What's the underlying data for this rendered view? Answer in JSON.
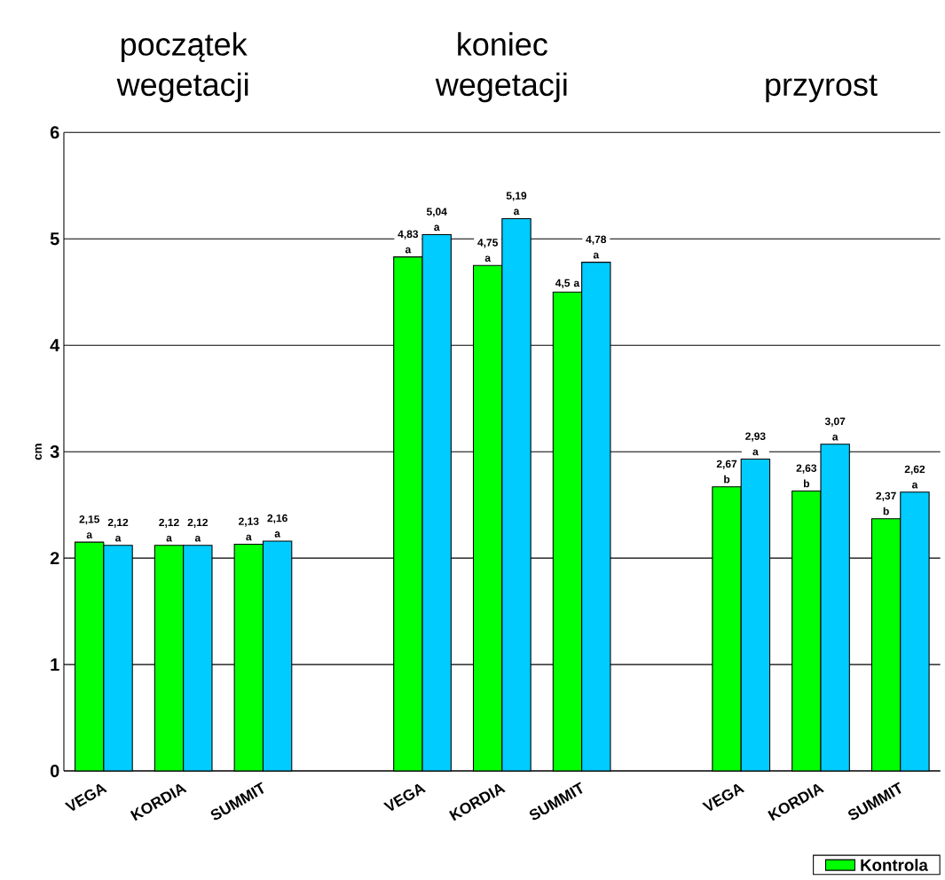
{
  "chart_data": {
    "type": "bar",
    "ylabel": "cm",
    "categories": [
      "VEGA",
      "KORDIA",
      "SUMMIT",
      null,
      "VEGA",
      "KORDIA",
      "SUMMIT",
      null,
      "VEGA",
      "KORDIA",
      "SUMMIT"
    ],
    "series": [
      {
        "name": "Kontrola",
        "color": "#00ff00",
        "values": [
          2.15,
          2.12,
          2.13,
          null,
          4.83,
          4.75,
          4.5,
          null,
          2.67,
          2.63,
          2.37
        ],
        "value_labels": [
          "2,15 a",
          "2,12 a",
          "2,13 a",
          null,
          "4,83 a",
          "4,75 a",
          "4,5 a",
          null,
          "2,67 b",
          "2,63 b",
          "2,37 b"
        ]
      },
      {
        "color": "#00ccff",
        "values": [
          2.12,
          2.12,
          2.16,
          null,
          5.04,
          5.19,
          4.78,
          null,
          2.93,
          3.07,
          2.62
        ],
        "value_labels": [
          "2,12 a",
          "2,12 a",
          "2,16 a",
          null,
          "5,04 a",
          "5,19 a",
          "4,78 a",
          null,
          "2,93 a",
          "3,07 a",
          "2,62 a"
        ]
      }
    ],
    "annotations": [
      "początek wegetacji",
      "koniec wegetacji",
      "przyrost"
    ],
    "ylim": [
      0,
      6
    ],
    "yticks": [
      0,
      1,
      2,
      3,
      4,
      5,
      6
    ],
    "grid": "y",
    "legend": "bottom right"
  }
}
